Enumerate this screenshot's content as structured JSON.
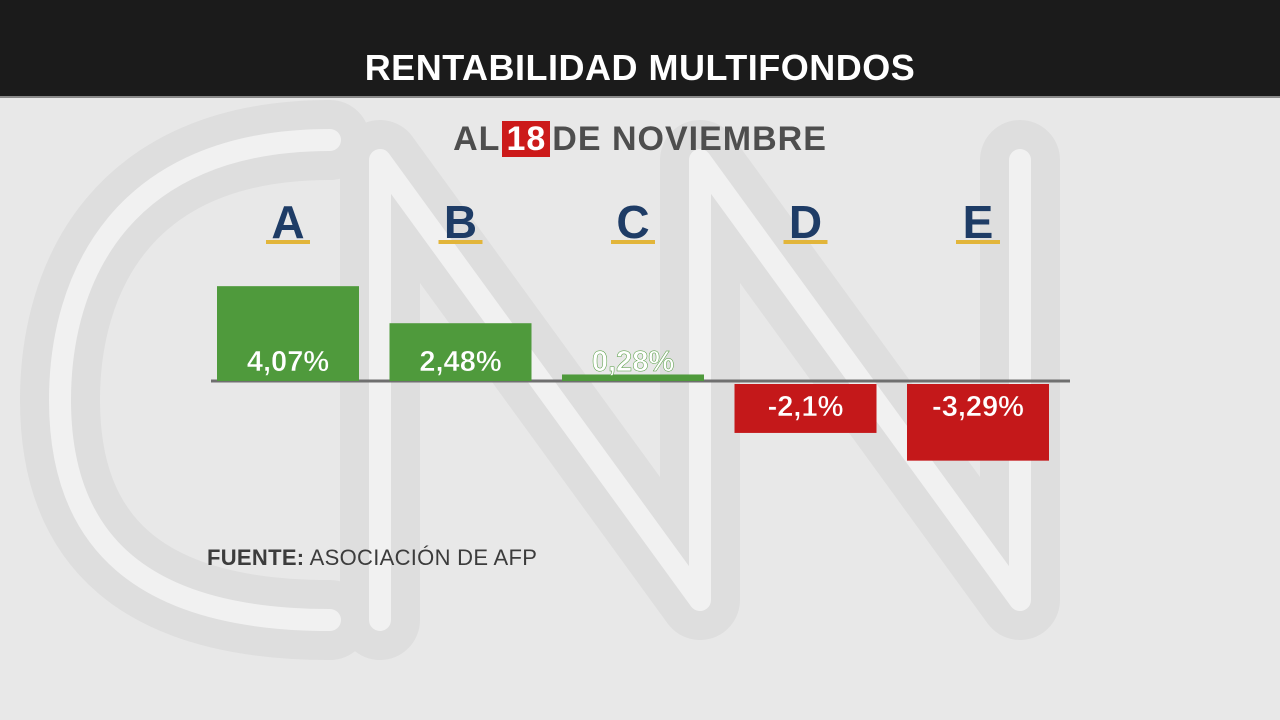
{
  "header": {
    "title": "RENTABILIDAD MULTIFONDOS"
  },
  "subtitle": {
    "prefix": "AL",
    "day": "18",
    "suffix": "DE NOVIEMBRE"
  },
  "source": {
    "label": "FUENTE:",
    "text": "ASOCIACIÓN DE AFP"
  },
  "watermark": "CNN",
  "colors": {
    "positive": "#4f9a3c",
    "negative": "#c4181a",
    "category_text": "#1e3c66",
    "category_underline": "#e2b53a",
    "axis": "#6f6f6f"
  },
  "chart_data": {
    "type": "bar",
    "categories": [
      "A",
      "B",
      "C",
      "D",
      "E"
    ],
    "values": [
      4.07,
      2.48,
      0.28,
      -2.1,
      -3.29
    ],
    "value_labels": [
      "4,07%",
      "2,48%",
      "0,28%",
      "-2,1%",
      "-3,29%"
    ],
    "unit": "%",
    "ylim": [
      -3.5,
      4.5
    ],
    "grid": false,
    "legend": "none"
  }
}
